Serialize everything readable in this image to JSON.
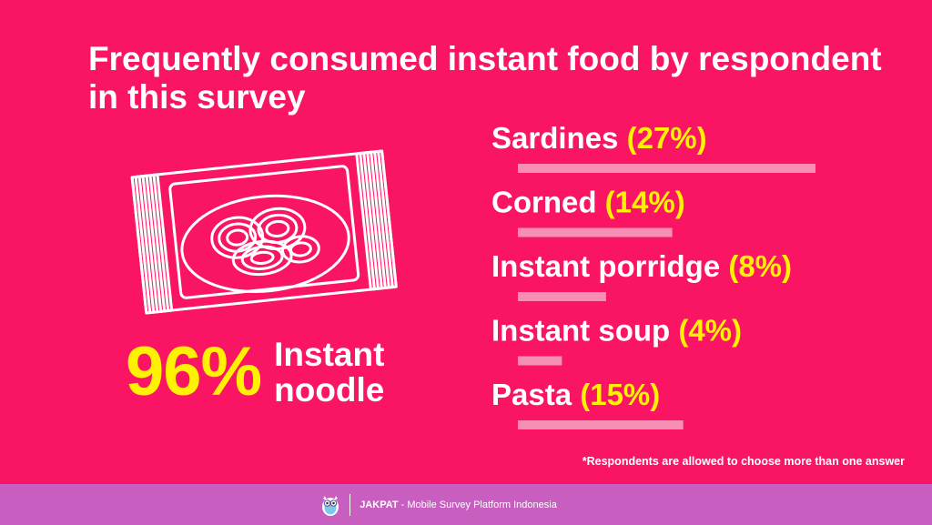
{
  "title": "Frequently consumed instant food by respondent in this survey",
  "highlight": {
    "value": "96%",
    "label": "Instant noodle",
    "icon": "instant-noodle-pack-icon"
  },
  "chart_data": {
    "type": "bar",
    "categories": [
      "Sardines",
      "Corned",
      "Instant porridge",
      "Instant soup",
      "Pasta"
    ],
    "values": [
      27,
      14,
      8,
      4,
      15
    ],
    "value_labels": [
      "(27%)",
      "(14%)",
      "(8%)",
      "(4%)",
      "(15%)"
    ],
    "title": "Frequently consumed instant food by respondent in this survey",
    "xlabel": "",
    "ylabel": "",
    "unit": "%"
  },
  "footnote": "*Respondents are allowed to choose more than one answer",
  "footer": {
    "brand": "JAKPAT",
    "tagline": " - Mobile Survey Platform Indonesia",
    "logo": "owl-mascot-icon"
  },
  "colors": {
    "background": "#fa1464",
    "accent": "#fff200",
    "bar": "#f78fb5",
    "footer": "#c85fc0"
  }
}
